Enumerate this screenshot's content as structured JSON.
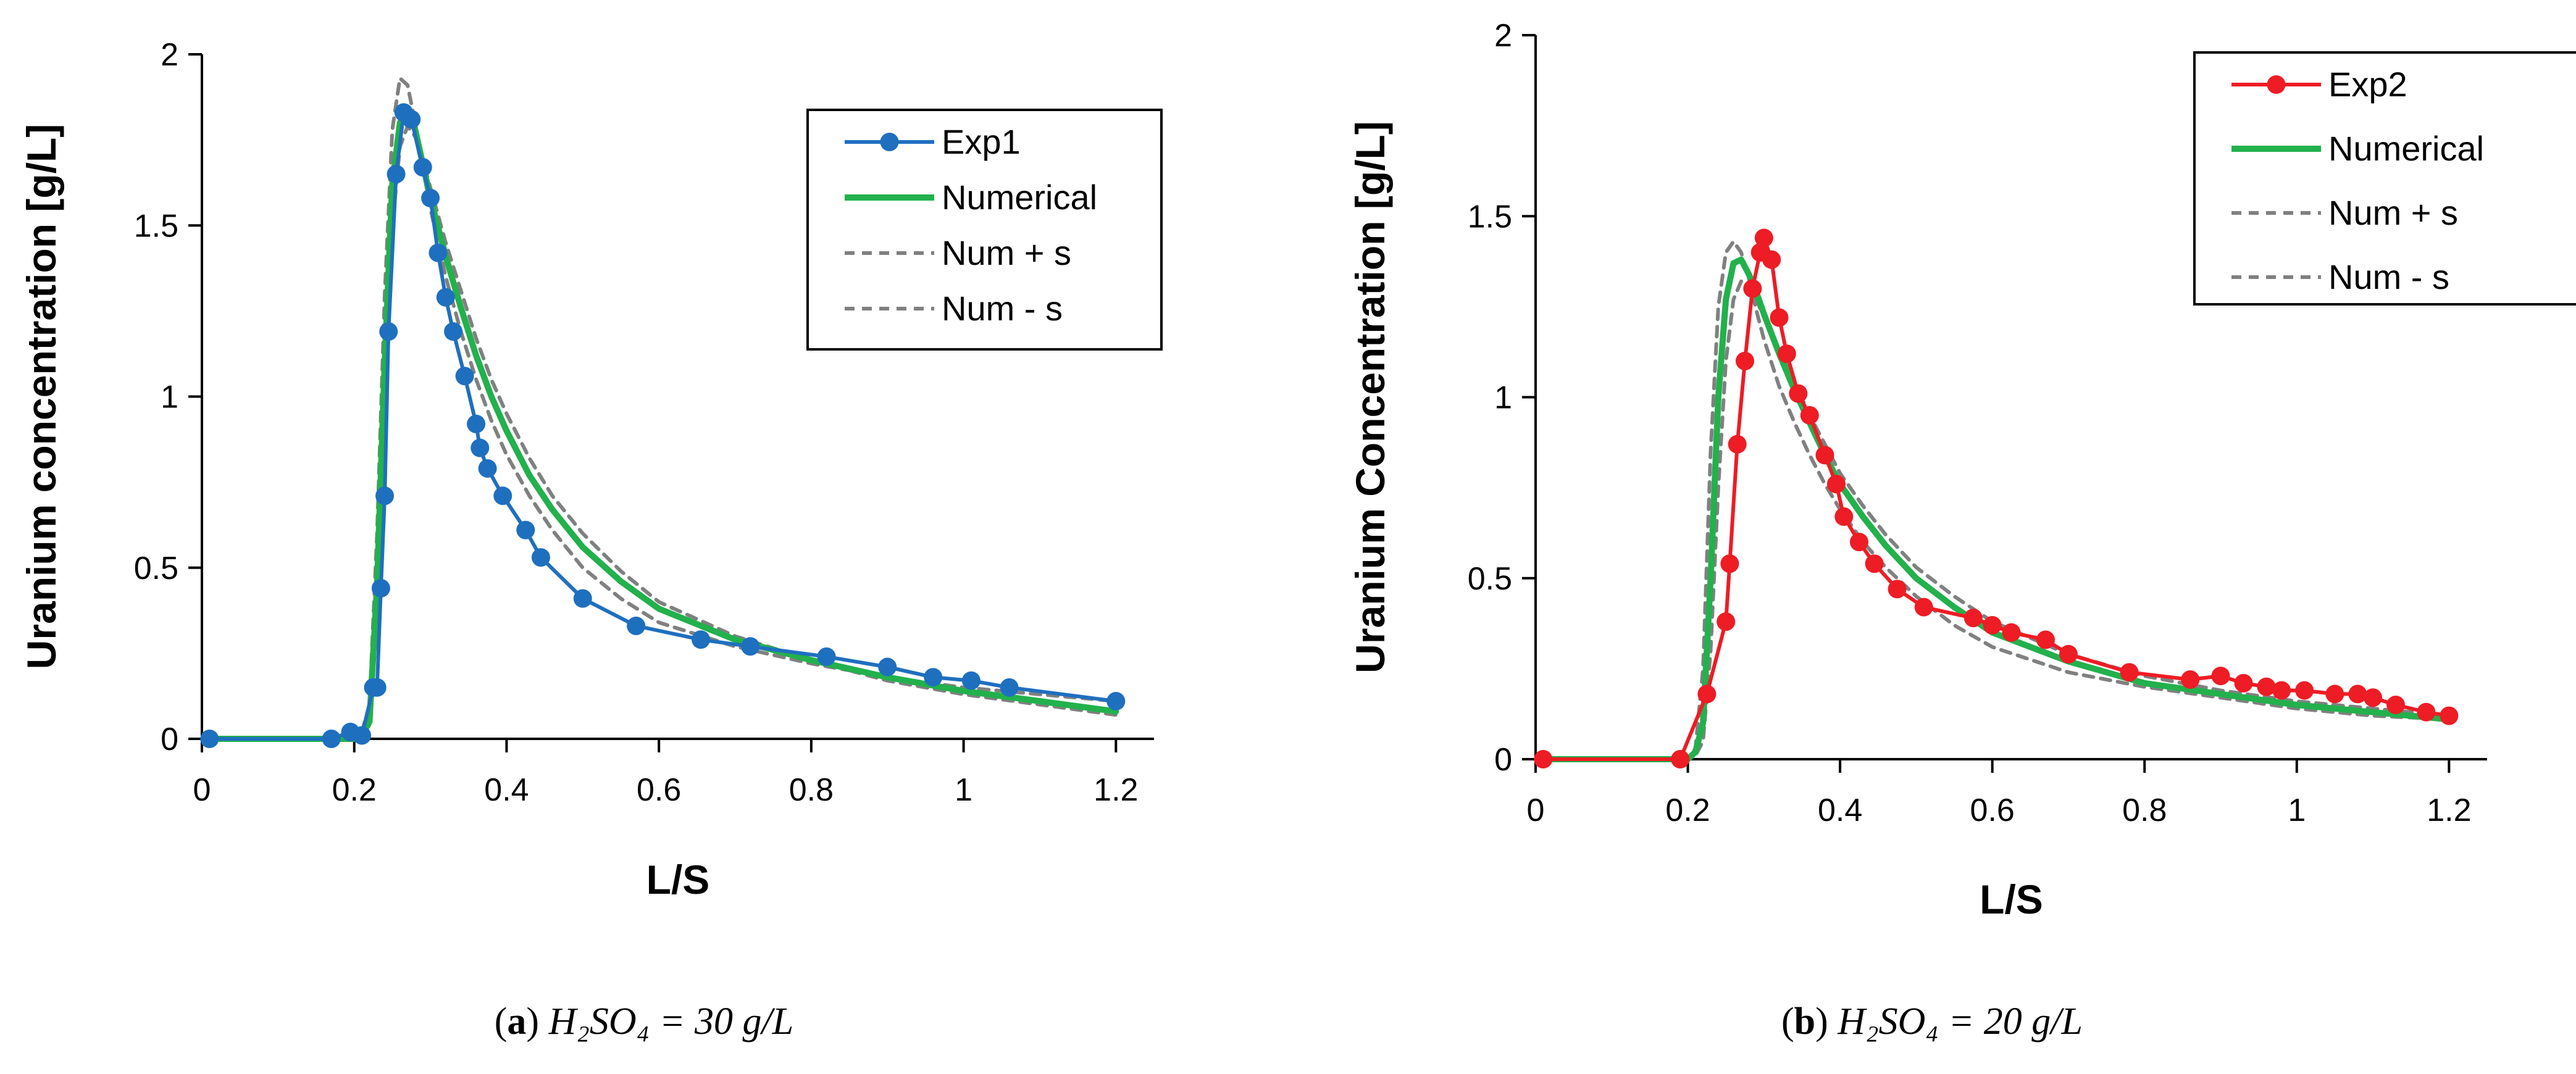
{
  "chart_data": [
    {
      "type": "line",
      "panel": "a",
      "caption": {
        "label": "a",
        "text": "H₂SO₄ = 30 g/L"
      },
      "xlabel": "L/S",
      "ylabel": "Uranium concentration [g/L]",
      "xlim": [
        0,
        1.25
      ],
      "ylim": [
        0,
        2
      ],
      "xticks": [
        0,
        0.2,
        0.4,
        0.6,
        0.8,
        1,
        1.2
      ],
      "xtick_labels": [
        "0",
        "0.2",
        "0.4",
        "0.6",
        "0.8",
        "1",
        "1.2"
      ],
      "yticks": [
        0,
        0.5,
        1,
        1.5,
        2
      ],
      "ytick_labels": [
        "0",
        "0.5",
        "1",
        "1.5",
        "2"
      ],
      "legend_position": "top-right",
      "grid": false,
      "series": [
        {
          "name": "Exp1",
          "style": "line-markers",
          "color": "#1f6fbf",
          "x": [
            0.01,
            0.17,
            0.195,
            0.21,
            0.225,
            0.23,
            0.235,
            0.24,
            0.245,
            0.255,
            0.265,
            0.275,
            0.29,
            0.3,
            0.31,
            0.32,
            0.33,
            0.345,
            0.36,
            0.365,
            0.375,
            0.395,
            0.425,
            0.445,
            0.5,
            0.57,
            0.655,
            0.72,
            0.82,
            0.9,
            0.96,
            1.01,
            1.06,
            1.2
          ],
          "y": [
            0,
            0,
            0.02,
            0.01,
            0.15,
            0.15,
            0.44,
            0.71,
            1.19,
            1.65,
            1.83,
            1.81,
            1.67,
            1.58,
            1.42,
            1.29,
            1.19,
            1.06,
            0.92,
            0.85,
            0.79,
            0.71,
            0.61,
            0.53,
            0.41,
            0.33,
            0.29,
            0.27,
            0.24,
            0.21,
            0.18,
            0.17,
            0.15,
            0.11
          ]
        },
        {
          "name": "Numerical",
          "style": "solid",
          "color": "#22b14c",
          "x": [
            0.01,
            0.2,
            0.21,
            0.22,
            0.23,
            0.24,
            0.25,
            0.26,
            0.27,
            0.28,
            0.29,
            0.3,
            0.32,
            0.34,
            0.36,
            0.38,
            0.4,
            0.43,
            0.46,
            0.5,
            0.55,
            0.6,
            0.7,
            0.8,
            0.9,
            1.0,
            1.1,
            1.2
          ],
          "y": [
            0,
            0,
            0.01,
            0.05,
            0.45,
            1.1,
            1.62,
            1.8,
            1.84,
            1.78,
            1.68,
            1.58,
            1.41,
            1.26,
            1.12,
            1.0,
            0.9,
            0.77,
            0.67,
            0.56,
            0.46,
            0.38,
            0.29,
            0.23,
            0.18,
            0.14,
            0.11,
            0.08
          ]
        },
        {
          "name": "Num + s",
          "style": "dashed",
          "color": "#808080",
          "x": [
            0.01,
            0.2,
            0.21,
            0.22,
            0.23,
            0.24,
            0.25,
            0.26,
            0.27,
            0.28,
            0.29,
            0.3,
            0.32,
            0.34,
            0.36,
            0.38,
            0.4,
            0.43,
            0.46,
            0.5,
            0.55,
            0.6,
            0.7,
            0.8,
            0.9,
            1.0,
            1.1,
            1.2
          ],
          "y": [
            0,
            0,
            0.02,
            0.1,
            0.6,
            1.3,
            1.78,
            1.93,
            1.91,
            1.8,
            1.67,
            1.55,
            1.35,
            1.19,
            1.05,
            0.93,
            0.83,
            0.71,
            0.61,
            0.5,
            0.41,
            0.34,
            0.27,
            0.22,
            0.18,
            0.15,
            0.13,
            0.11
          ]
        },
        {
          "name": "Num - s",
          "style": "dashed",
          "color": "#808080",
          "x": [
            0.01,
            0.2,
            0.21,
            0.22,
            0.23,
            0.24,
            0.25,
            0.26,
            0.27,
            0.28,
            0.29,
            0.3,
            0.32,
            0.34,
            0.36,
            0.38,
            0.4,
            0.43,
            0.46,
            0.5,
            0.55,
            0.6,
            0.7,
            0.8,
            0.9,
            1.0,
            1.1,
            1.2
          ],
          "y": [
            0,
            0,
            0.01,
            0.04,
            0.35,
            0.95,
            1.5,
            1.73,
            1.79,
            1.76,
            1.69,
            1.61,
            1.45,
            1.31,
            1.17,
            1.05,
            0.95,
            0.82,
            0.71,
            0.6,
            0.49,
            0.4,
            0.3,
            0.23,
            0.17,
            0.13,
            0.1,
            0.07
          ]
        }
      ]
    },
    {
      "type": "line",
      "panel": "b",
      "caption": {
        "label": "b",
        "text": "H₂SO₄ = 20 g/L"
      },
      "xlabel": "L/S",
      "ylabel": "Uranium Concentration [g/L]",
      "xlim": [
        0,
        1.25
      ],
      "ylim": [
        0,
        2
      ],
      "xticks": [
        0,
        0.2,
        0.4,
        0.6,
        0.8,
        1,
        1.2
      ],
      "xtick_labels": [
        "0",
        "0.2",
        "0.4",
        "0.6",
        "0.8",
        "1",
        "1.2"
      ],
      "yticks": [
        0,
        0.5,
        1,
        1.5,
        2
      ],
      "ytick_labels": [
        "0",
        "0.5",
        "1",
        "1.5",
        "2"
      ],
      "legend_position": "top-right",
      "grid": false,
      "series": [
        {
          "name": "Exp2",
          "style": "line-markers",
          "color": "#ee1c24",
          "x": [
            0.01,
            0.19,
            0.225,
            0.25,
            0.255,
            0.265,
            0.275,
            0.285,
            0.295,
            0.3,
            0.31,
            0.32,
            0.33,
            0.345,
            0.36,
            0.38,
            0.395,
            0.405,
            0.425,
            0.445,
            0.475,
            0.51,
            0.575,
            0.6,
            0.625,
            0.67,
            0.7,
            0.78,
            0.86,
            0.9,
            0.93,
            0.96,
            0.98,
            1.01,
            1.05,
            1.08,
            1.1,
            1.13,
            1.17,
            1.2
          ],
          "y": [
            0,
            0,
            0.18,
            0.38,
            0.54,
            0.87,
            1.1,
            1.3,
            1.4,
            1.44,
            1.38,
            1.22,
            1.12,
            1.01,
            0.95,
            0.84,
            0.76,
            0.67,
            0.6,
            0.54,
            0.47,
            0.42,
            0.39,
            0.37,
            0.35,
            0.33,
            0.29,
            0.24,
            0.22,
            0.23,
            0.21,
            0.2,
            0.19,
            0.19,
            0.18,
            0.18,
            0.17,
            0.15,
            0.13,
            0.12
          ]
        },
        {
          "name": "Numerical",
          "style": "solid",
          "color": "#22b14c",
          "x": [
            0.01,
            0.2,
            0.21,
            0.22,
            0.23,
            0.24,
            0.25,
            0.26,
            0.27,
            0.28,
            0.29,
            0.3,
            0.32,
            0.34,
            0.36,
            0.38,
            0.4,
            0.43,
            0.46,
            0.5,
            0.55,
            0.6,
            0.7,
            0.8,
            0.9,
            1.0,
            1.1,
            1.2
          ],
          "y": [
            0,
            0,
            0.02,
            0.1,
            0.5,
            1.0,
            1.27,
            1.37,
            1.38,
            1.34,
            1.29,
            1.23,
            1.12,
            1.02,
            0.93,
            0.84,
            0.76,
            0.67,
            0.59,
            0.5,
            0.42,
            0.35,
            0.27,
            0.21,
            0.18,
            0.15,
            0.13,
            0.11
          ]
        },
        {
          "name": "Num + s",
          "style": "dashed",
          "color": "#808080",
          "x": [
            0.01,
            0.2,
            0.21,
            0.22,
            0.23,
            0.24,
            0.25,
            0.26,
            0.27,
            0.28,
            0.29,
            0.3,
            0.32,
            0.34,
            0.36,
            0.38,
            0.4,
            0.43,
            0.46,
            0.5,
            0.55,
            0.6,
            0.7,
            0.8,
            0.9,
            1.0,
            1.1,
            1.2
          ],
          "y": [
            0,
            0,
            0.03,
            0.25,
            0.85,
            1.25,
            1.4,
            1.43,
            1.4,
            1.33,
            1.24,
            1.16,
            1.03,
            0.93,
            0.84,
            0.76,
            0.69,
            0.6,
            0.53,
            0.45,
            0.37,
            0.31,
            0.24,
            0.2,
            0.17,
            0.14,
            0.12,
            0.11
          ]
        },
        {
          "name": "Num - s",
          "style": "dashed",
          "color": "#808080",
          "x": [
            0.01,
            0.2,
            0.21,
            0.22,
            0.23,
            0.24,
            0.25,
            0.26,
            0.27,
            0.28,
            0.29,
            0.3,
            0.32,
            0.34,
            0.36,
            0.38,
            0.4,
            0.43,
            0.46,
            0.5,
            0.55,
            0.6,
            0.7,
            0.8,
            0.9,
            1.0,
            1.1,
            1.2
          ],
          "y": [
            0,
            0,
            0.01,
            0.05,
            0.3,
            0.75,
            1.1,
            1.27,
            1.32,
            1.31,
            1.27,
            1.22,
            1.13,
            1.04,
            0.95,
            0.87,
            0.79,
            0.7,
            0.62,
            0.53,
            0.45,
            0.38,
            0.29,
            0.23,
            0.19,
            0.16,
            0.14,
            0.12
          ]
        }
      ]
    }
  ]
}
